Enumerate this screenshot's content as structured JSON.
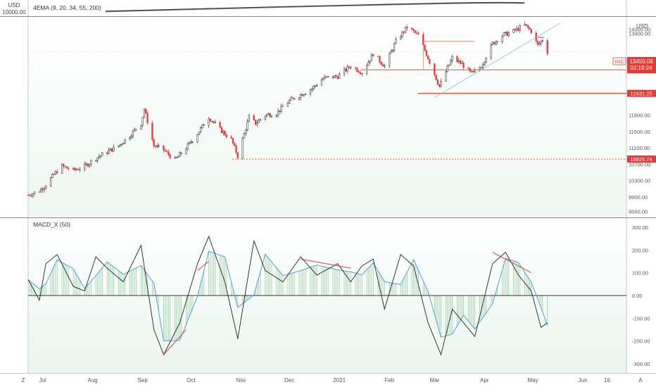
{
  "chart_data": [
    {
      "type": "line",
      "title": "4EMA (9, 20, 34, 55, 200)",
      "currency_label": "USD",
      "scale_label": "USD",
      "top_left_value": "10000.00",
      "y_ticks": [
        "14000.00",
        "13900.00",
        "11900.00",
        "11500.00",
        "11100.00",
        "10700.00",
        "10300.00",
        "9900.00",
        "9550.00"
      ],
      "ylim": [
        9400,
        14300
      ],
      "grid": false,
      "series_tag": "IXIC",
      "price_label": "13450.08",
      "countdown": "02:19:24",
      "levels": [
        {
          "value": 13006.5,
          "label": "13006.50"
        },
        {
          "value": 12431.25,
          "label": "12431.25"
        },
        {
          "value": 10825.74,
          "label": "10825.74"
        }
      ],
      "price_path": [
        [
          "2020-06-22",
          9950
        ],
        [
          "2020-06-29",
          10050
        ],
        [
          "2020-07-03",
          10200
        ],
        [
          "2020-07-08",
          10450
        ],
        [
          "2020-07-13",
          10650
        ],
        [
          "2020-07-20",
          10550
        ],
        [
          "2020-07-27",
          10650
        ],
        [
          "2020-08-03",
          10850
        ],
        [
          "2020-08-10",
          11000
        ],
        [
          "2020-08-17",
          11150
        ],
        [
          "2020-08-24",
          11400
        ],
        [
          "2020-08-31",
          11700
        ],
        [
          "2020-09-02",
          12050
        ],
        [
          "2020-09-08",
          11150
        ],
        [
          "2020-09-14",
          11050
        ],
        [
          "2020-09-21",
          10800
        ],
        [
          "2020-09-28",
          11100
        ],
        [
          "2020-10-05",
          11450
        ],
        [
          "2020-10-12",
          11850
        ],
        [
          "2020-10-19",
          11550
        ],
        [
          "2020-10-26",
          11300
        ],
        [
          "2020-10-30",
          10900
        ],
        [
          "2020-11-06",
          11850
        ],
        [
          "2020-11-10",
          11700
        ],
        [
          "2020-11-16",
          11900
        ],
        [
          "2020-11-23",
          11950
        ],
        [
          "2020-12-01",
          12250
        ],
        [
          "2020-12-08",
          12400
        ],
        [
          "2020-12-15",
          12550
        ],
        [
          "2020-12-22",
          12800
        ],
        [
          "2020-12-31",
          12850
        ],
        [
          "2021-01-08",
          13100
        ],
        [
          "2021-01-15",
          12950
        ],
        [
          "2021-01-22",
          13400
        ],
        [
          "2021-01-29",
          13100
        ],
        [
          "2021-02-05",
          13700
        ],
        [
          "2021-02-12",
          14050
        ],
        [
          "2021-02-19",
          13850
        ],
        [
          "2021-02-25",
          13300
        ],
        [
          "2021-03-04",
          12600
        ],
        [
          "2021-03-09",
          13050
        ],
        [
          "2021-03-12",
          13300
        ],
        [
          "2021-03-18",
          13150
        ],
        [
          "2021-03-24",
          12900
        ],
        [
          "2021-03-30",
          13100
        ],
        [
          "2021-04-06",
          13650
        ],
        [
          "2021-04-12",
          13850
        ],
        [
          "2021-04-19",
          13950
        ],
        [
          "2021-04-26",
          14100
        ],
        [
          "2021-04-30",
          13950
        ],
        [
          "2021-05-04",
          13600
        ],
        [
          "2021-05-07",
          13750
        ],
        [
          "2021-05-10",
          13450
        ]
      ]
    },
    {
      "type": "line",
      "title": "MACD_X (50)",
      "y_ticks": [
        "300.00",
        "200.00",
        "100.00",
        "0.00",
        "-100.00",
        "-200.00",
        "-300.00"
      ],
      "ylim": [
        -340,
        340
      ],
      "zero_line": true,
      "grid": false
    }
  ],
  "time_axis": {
    "corner_left": "Z",
    "corner_right": "A",
    "labels": [
      {
        "text": "Jul",
        "date": "2020-07-01"
      },
      {
        "text": "Aug",
        "date": "2020-08-01"
      },
      {
        "text": "Sep",
        "date": "2020-09-01"
      },
      {
        "text": "Oct",
        "date": "2020-10-01"
      },
      {
        "text": "Nov",
        "date": "2020-11-01"
      },
      {
        "text": "Dec",
        "date": "2020-12-01"
      },
      {
        "text": "2021",
        "date": "2021-01-01"
      },
      {
        "text": "Feb",
        "date": "2021-02-01"
      },
      {
        "text": "Mar",
        "date": "2021-03-01"
      },
      {
        "text": "Apr",
        "date": "2021-04-01"
      },
      {
        "text": "May",
        "date": "2021-05-01"
      },
      {
        "text": "Jun",
        "date": "2021-06-01"
      },
      {
        "text": "16",
        "date": "2021-06-16"
      }
    ]
  },
  "colors": {
    "up": "#26262b",
    "down": "#e03a3a",
    "level": "#f05a28",
    "label_bg": "#e53935",
    "ema": "#3a3a3a",
    "macd": "#222222",
    "signal": "#4fa3d9",
    "hist": "#9bd0a6",
    "trend": "#e03a3a",
    "pane_bg": "#eef7f2"
  }
}
